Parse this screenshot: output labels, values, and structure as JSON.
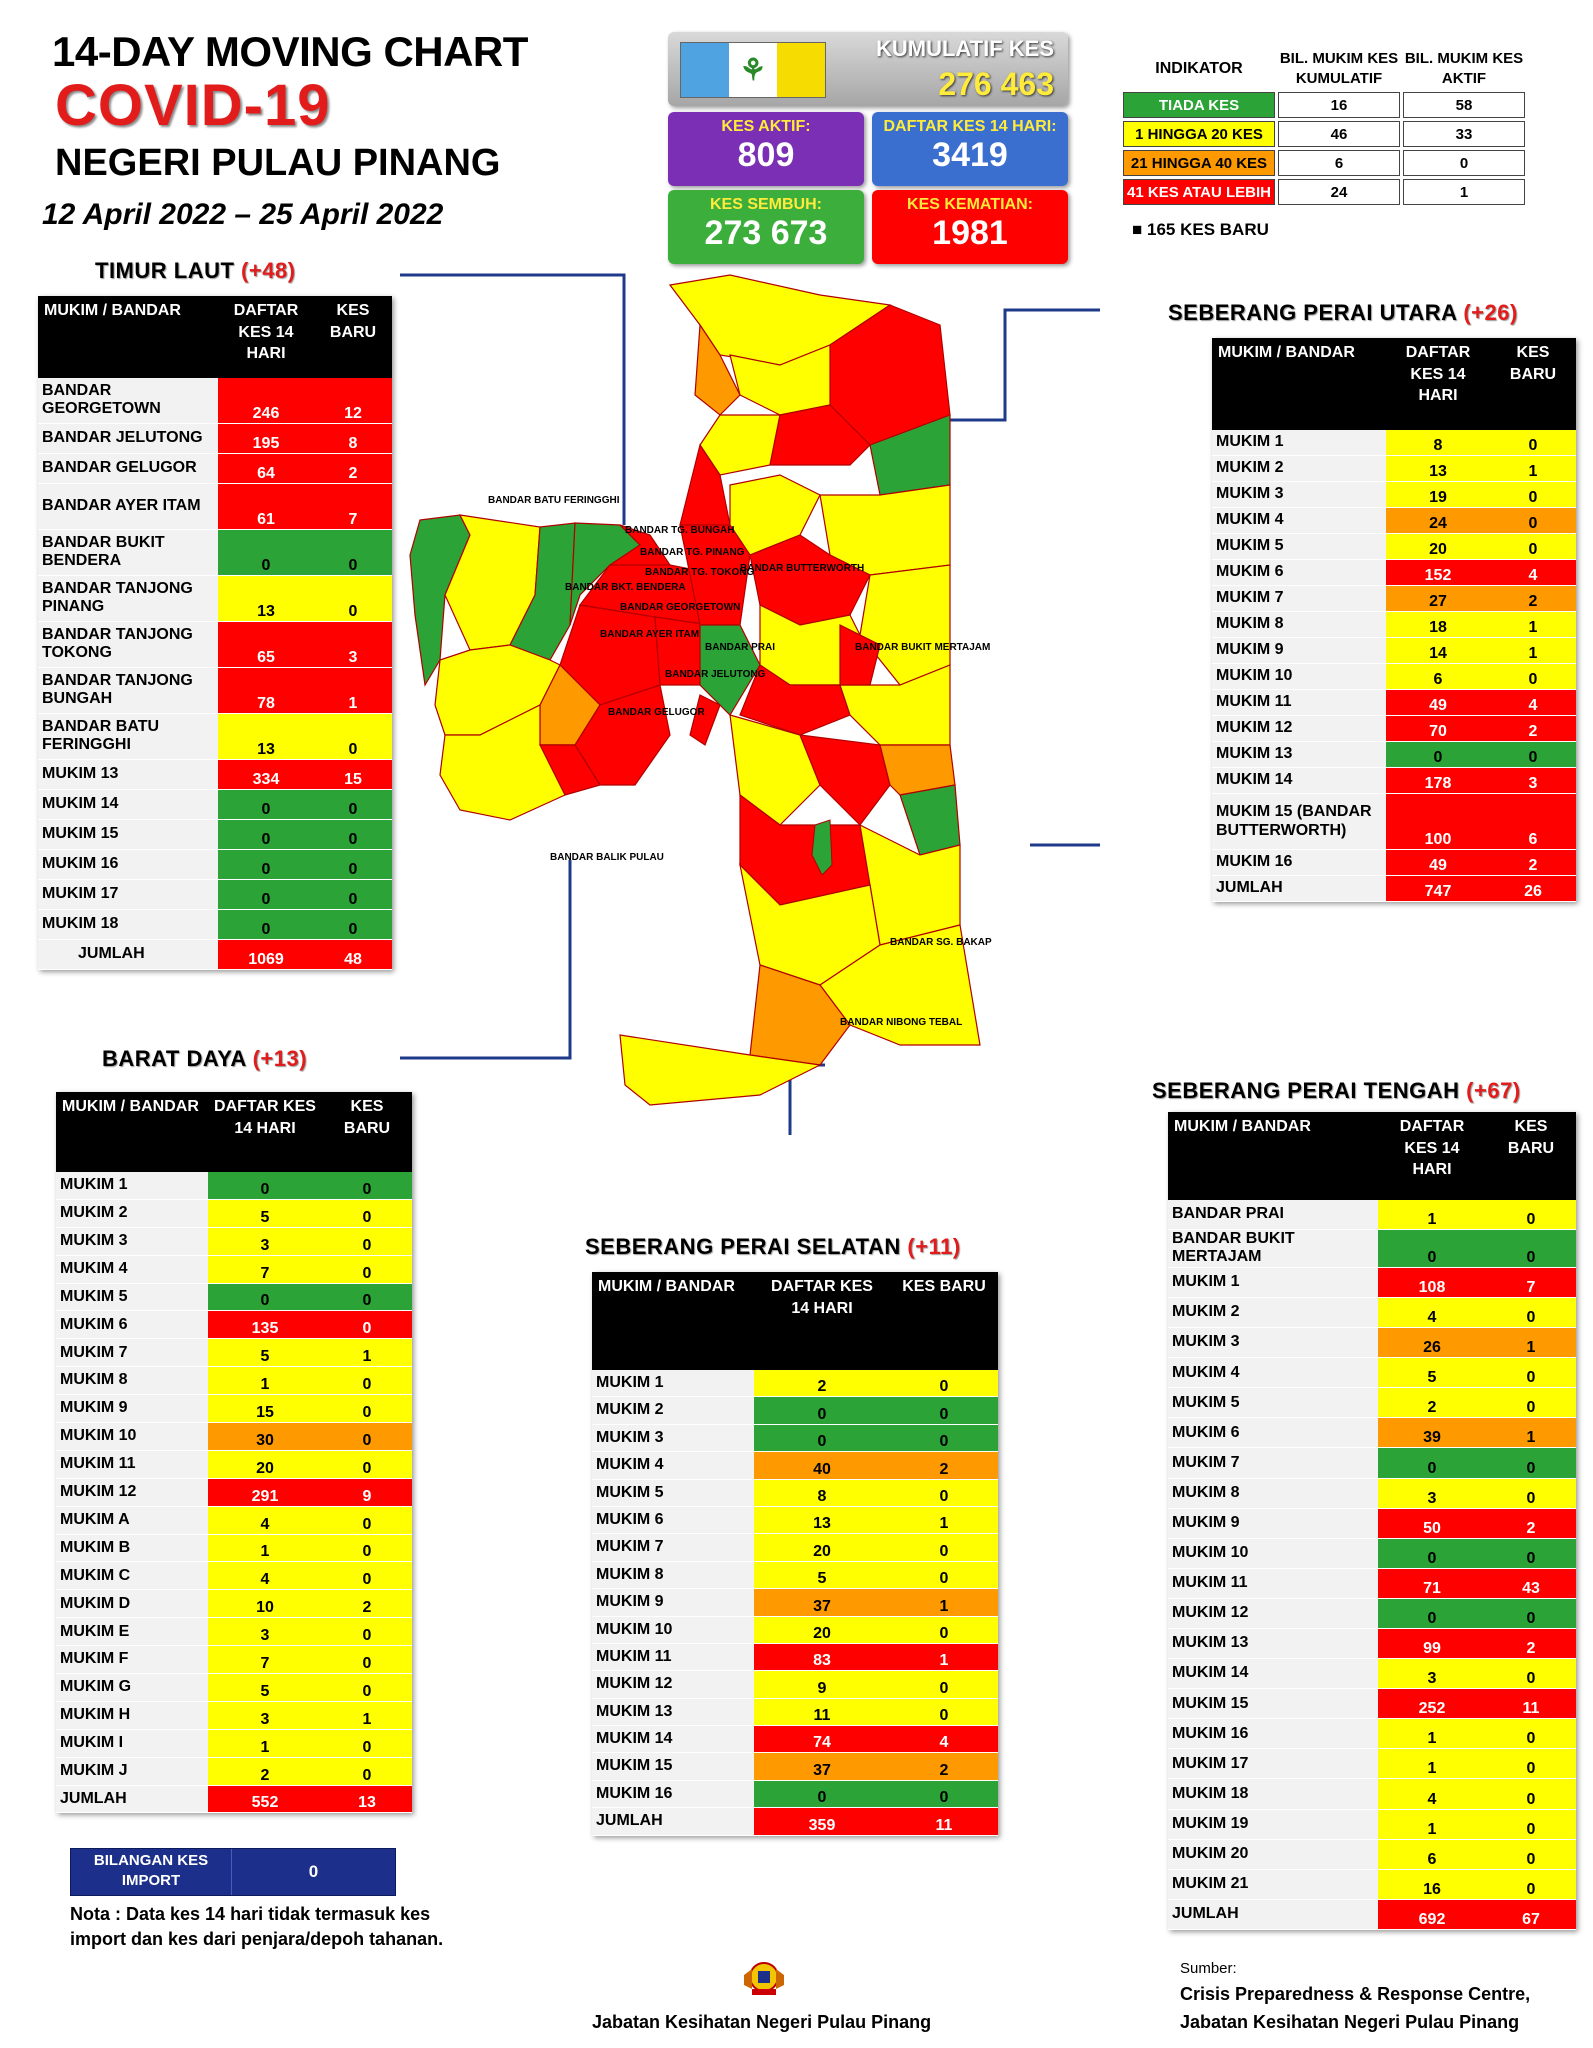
{
  "header": {
    "line1": "14-DAY MOVING CHART",
    "line2": "COVID-19",
    "line3": "NEGERI PULAU PINANG",
    "dates": "12 April 2022 – 25 April 2022"
  },
  "summary": {
    "kumulatif_label": "KUMULATIF KES",
    "kumulatif": "276 463",
    "aktif_label": "KES AKTIF:",
    "aktif": "809",
    "daftar_label": "DAFTAR KES 14 HARI:",
    "daftar": "3419",
    "sembuh_label": "KES SEMBUH:",
    "sembuh": "273 673",
    "kematian_label": "KES KEMATIAN:",
    "kematian": "1981"
  },
  "legend": {
    "h_indikator": "INDIKATOR",
    "h_kum": "BIL. MUKIM KES KUMULATIF",
    "h_aktif": "BIL. MUKIM KES AKTIF",
    "rows": [
      {
        "label": "TIADA KES",
        "kum": "16",
        "aktif": "58"
      },
      {
        "label": "1 HINGGA 20 KES",
        "kum": "46",
        "aktif": "33"
      },
      {
        "label": "21 HINGGA 40 KES",
        "kum": "6",
        "aktif": "0"
      },
      {
        "label": "41 KES ATAU LEBIH",
        "kum": "24",
        "aktif": "1"
      }
    ],
    "new_cases": "165 KES BARU"
  },
  "columns": {
    "mukim": "MUKIM / BANDAR",
    "daftar": "DAFTAR KES 14 HARI",
    "baru": "KES BARU",
    "daftar_short": "DAFTAR KES 14 HARI"
  },
  "timur_laut": {
    "name": "TIMUR LAUT",
    "plus": "(+48)",
    "rows": [
      [
        "BANDAR GEORGETOWN",
        "246",
        "12"
      ],
      [
        "BANDAR JELUTONG",
        "195",
        "8"
      ],
      [
        "BANDAR GELUGOR",
        "64",
        "2"
      ],
      [
        "BANDAR AYER ITAM",
        "61",
        "7"
      ],
      [
        "BANDAR BUKIT BENDERA",
        "0",
        "0"
      ],
      [
        "BANDAR TANJONG PINANG",
        "13",
        "0"
      ],
      [
        "BANDAR TANJONG TOKONG",
        "65",
        "3"
      ],
      [
        "BANDAR TANJONG BUNGAH",
        "78",
        "1"
      ],
      [
        "BANDAR BATU FERINGGHI",
        "13",
        "0"
      ],
      [
        "MUKIM 13",
        "334",
        "15"
      ],
      [
        "MUKIM 14",
        "0",
        "0"
      ],
      [
        "MUKIM 15",
        "0",
        "0"
      ],
      [
        "MUKIM 16",
        "0",
        "0"
      ],
      [
        "MUKIM 17",
        "0",
        "0"
      ],
      [
        "MUKIM 18",
        "0",
        "0"
      ]
    ],
    "total": [
      "JUMLAH",
      "1069",
      "48"
    ]
  },
  "barat_daya": {
    "name": "BARAT DAYA",
    "plus": "(+13)",
    "rows": [
      [
        "MUKIM 1",
        "0",
        "0"
      ],
      [
        "MUKIM 2",
        "5",
        "0"
      ],
      [
        "MUKIM 3",
        "3",
        "0"
      ],
      [
        "MUKIM 4",
        "7",
        "0"
      ],
      [
        "MUKIM 5",
        "0",
        "0"
      ],
      [
        "MUKIM 6",
        "135",
        "0"
      ],
      [
        "MUKIM 7",
        "5",
        "1"
      ],
      [
        "MUKIM 8",
        "1",
        "0"
      ],
      [
        "MUKIM 9",
        "15",
        "0"
      ],
      [
        "MUKIM 10",
        "30",
        "0"
      ],
      [
        "MUKIM 11",
        "20",
        "0"
      ],
      [
        "MUKIM 12",
        "291",
        "9"
      ],
      [
        "MUKIM A",
        "4",
        "0"
      ],
      [
        "MUKIM B",
        "1",
        "0"
      ],
      [
        "MUKIM C",
        "4",
        "0"
      ],
      [
        "MUKIM D",
        "10",
        "2"
      ],
      [
        "MUKIM E",
        "3",
        "0"
      ],
      [
        "MUKIM F",
        "7",
        "0"
      ],
      [
        "MUKIM G",
        "5",
        "0"
      ],
      [
        "MUKIM H",
        "3",
        "1"
      ],
      [
        "MUKIM I",
        "1",
        "0"
      ],
      [
        "MUKIM J",
        "2",
        "0"
      ]
    ],
    "total": [
      "JUMLAH",
      "552",
      "13"
    ]
  },
  "sp_utara": {
    "name": "SEBERANG PERAI UTARA",
    "plus": "(+26)",
    "rows": [
      [
        "MUKIM 1",
        "8",
        "0"
      ],
      [
        "MUKIM 2",
        "13",
        "1"
      ],
      [
        "MUKIM 3",
        "19",
        "0"
      ],
      [
        "MUKIM 4",
        "24",
        "0"
      ],
      [
        "MUKIM 5",
        "20",
        "0"
      ],
      [
        "MUKIM 6",
        "152",
        "4"
      ],
      [
        "MUKIM 7",
        "27",
        "2"
      ],
      [
        "MUKIM 8",
        "18",
        "1"
      ],
      [
        "MUKIM 9",
        "14",
        "1"
      ],
      [
        "MUKIM 10",
        "6",
        "0"
      ],
      [
        "MUKIM 11",
        "49",
        "4"
      ],
      [
        "MUKIM 12",
        "70",
        "2"
      ],
      [
        "MUKIM 13",
        "0",
        "0"
      ],
      [
        "MUKIM 14",
        "178",
        "3"
      ],
      [
        "MUKIM 15 (BANDAR BUTTERWORTH)",
        "100",
        "6"
      ],
      [
        "MUKIM 16",
        "49",
        "2"
      ]
    ],
    "total": [
      "JUMLAH",
      "747",
      "26"
    ]
  },
  "sp_selatan": {
    "name": "SEBERANG PERAI SELATAN",
    "plus": "(+11)",
    "rows": [
      [
        "MUKIM 1",
        "2",
        "0"
      ],
      [
        "MUKIM 2",
        "0",
        "0"
      ],
      [
        "MUKIM 3",
        "0",
        "0"
      ],
      [
        "MUKIM 4",
        "40",
        "2"
      ],
      [
        "MUKIM 5",
        "8",
        "0"
      ],
      [
        "MUKIM 6",
        "13",
        "1"
      ],
      [
        "MUKIM 7",
        "20",
        "0"
      ],
      [
        "MUKIM 8",
        "5",
        "0"
      ],
      [
        "MUKIM 9",
        "37",
        "1"
      ],
      [
        "MUKIM 10",
        "20",
        "0"
      ],
      [
        "MUKIM 11",
        "83",
        "1"
      ],
      [
        "MUKIM 12",
        "9",
        "0"
      ],
      [
        "MUKIM 13",
        "11",
        "0"
      ],
      [
        "MUKIM 14",
        "74",
        "4"
      ],
      [
        "MUKIM 15",
        "37",
        "2"
      ],
      [
        "MUKIM 16",
        "0",
        "0"
      ]
    ],
    "total": [
      "JUMLAH",
      "359",
      "11"
    ]
  },
  "sp_tengah": {
    "name": "SEBERANG PERAI TENGAH",
    "plus": "(+67)",
    "rows": [
      [
        "BANDAR PRAI",
        "1",
        "0"
      ],
      [
        "BANDAR BUKIT MERTAJAM",
        "0",
        "0"
      ],
      [
        "MUKIM 1",
        "108",
        "7"
      ],
      [
        "MUKIM 2",
        "4",
        "0"
      ],
      [
        "MUKIM 3",
        "26",
        "1"
      ],
      [
        "MUKIM 4",
        "5",
        "0"
      ],
      [
        "MUKIM 5",
        "2",
        "0"
      ],
      [
        "MUKIM 6",
        "39",
        "1"
      ],
      [
        "MUKIM 7",
        "0",
        "0"
      ],
      [
        "MUKIM 8",
        "3",
        "0"
      ],
      [
        "MUKIM 9",
        "50",
        "2"
      ],
      [
        "MUKIM 10",
        "0",
        "0"
      ],
      [
        "MUKIM 11",
        "71",
        "43"
      ],
      [
        "MUKIM 12",
        "0",
        "0"
      ],
      [
        "MUKIM 13",
        "99",
        "2"
      ],
      [
        "MUKIM 14",
        "3",
        "0"
      ],
      [
        "MUKIM 15",
        "252",
        "11"
      ],
      [
        "MUKIM 16",
        "1",
        "0"
      ],
      [
        "MUKIM 17",
        "1",
        "0"
      ],
      [
        "MUKIM 18",
        "4",
        "0"
      ],
      [
        "MUKIM 19",
        "1",
        "0"
      ],
      [
        "MUKIM 20",
        "6",
        "0"
      ],
      [
        "MUKIM 21",
        "16",
        "0"
      ]
    ],
    "total": [
      "JUMLAH",
      "692",
      "67"
    ]
  },
  "import": {
    "label": "BILANGAN KES IMPORT",
    "value": "0"
  },
  "note": "Nota : Data kes 14 hari tidak termasuk kes import dan kes dari penjara/depoh tahanan.",
  "footer": {
    "dept": "Jabatan Kesihatan Negeri Pulau Pinang",
    "src_label": "Sumber:",
    "src1": "Crisis Preparedness & Response Centre,",
    "src2": "Jabatan Kesihatan Negeri Pulau Pinang"
  },
  "map_labels": {
    "batu_feringghi": "BANDAR BATU FERINGGHI",
    "tg_bungah": "BANDAR TG. BUNGAH",
    "tg_pinang": "BANDAR TG. PINANG",
    "tg_tokong": "BANDAR TG. TOKONG",
    "bkt_bendera": "BANDAR BKT. BENDERA",
    "georgetown": "BANDAR GEORGETOWN",
    "ayer_itam": "BANDAR AYER ITAM",
    "jelutong": "BANDAR JELUTONG",
    "gelugor": "BANDAR GELUGOR",
    "butterworth": "BANDAR BUTTERWORTH",
    "prai": "BANDAR PRAI",
    "bkt_mertajam": "BANDAR BUKIT MERTAJAM",
    "sg_bakap": "BANDAR SG. BAKAP",
    "nibong_tebal": "BANDAR NIBONG TEBAL",
    "balik_pulau": "BANDAR BALIK PULAU"
  },
  "colors": {
    "green": "#2ba337",
    "yellow": "#ffff00",
    "orange": "#ff9900",
    "red": "#ff0000",
    "purple": "#7a2fb5",
    "blue": "#3a6fd0",
    "navy": "#1c2f8a"
  }
}
